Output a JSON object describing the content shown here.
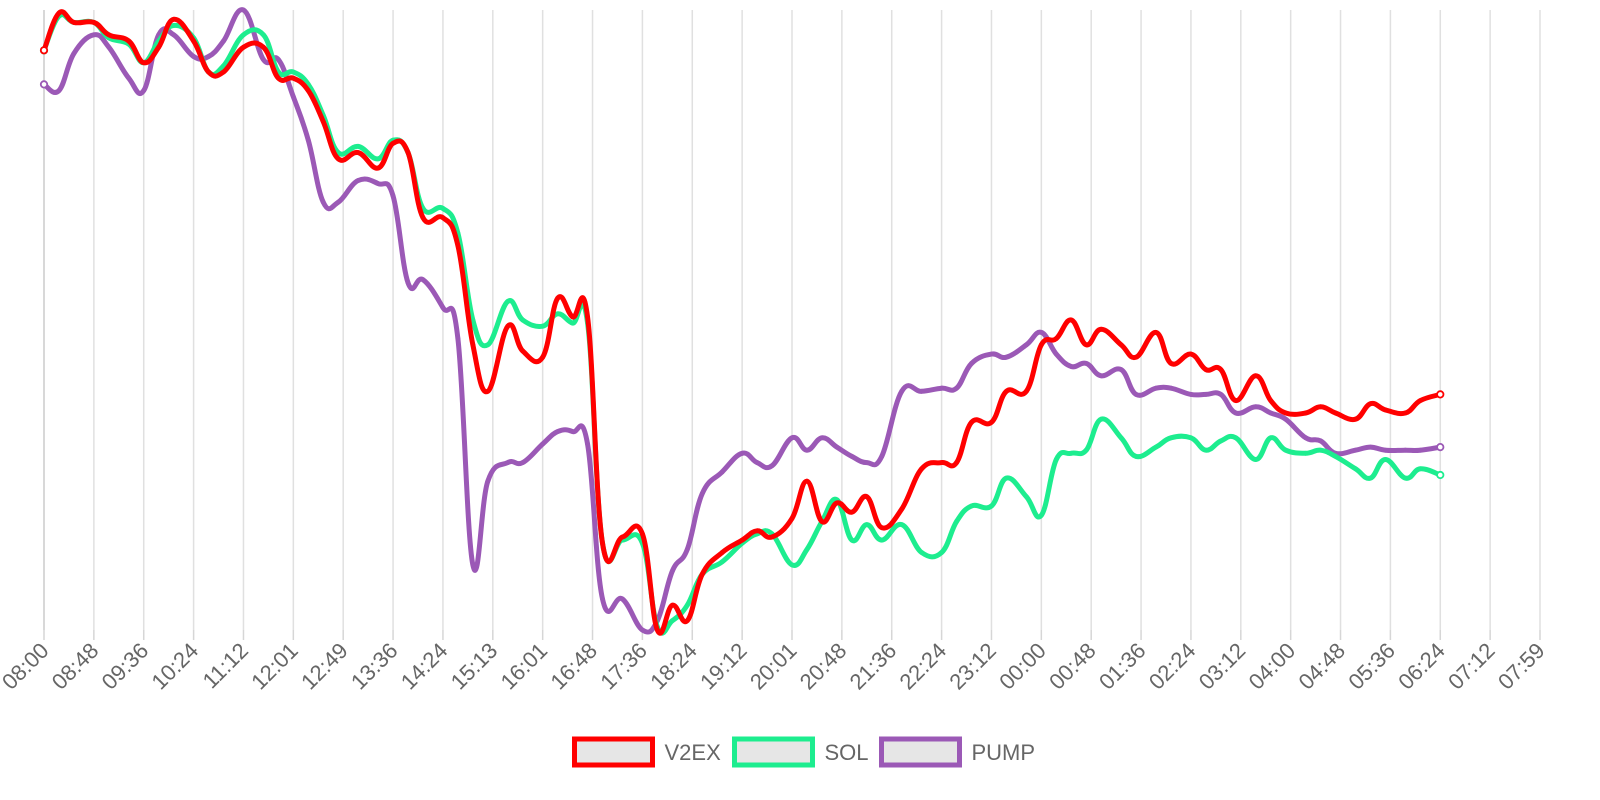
{
  "chart_data": {
    "type": "line",
    "categories": [
      "08:00",
      "08:48",
      "09:36",
      "10:24",
      "11:12",
      "12:01",
      "12:49",
      "13:36",
      "14:24",
      "15:13",
      "16:01",
      "16:48",
      "17:36",
      "18:24",
      "19:12",
      "20:01",
      "20:48",
      "21:36",
      "22:24",
      "23:12",
      "00:00",
      "00:48",
      "01:36",
      "02:24",
      "03:12",
      "04:00",
      "04:48",
      "05:36",
      "06:24",
      "07:12",
      "07:59"
    ],
    "legend": [
      "V2EX",
      "SOL",
      "PUMP"
    ],
    "legend_position": "bottom",
    "grid": true,
    "ylim": [
      0,
      100
    ],
    "series": [
      {
        "name": "V2EX",
        "color": "#ff0000",
        "values": [
          [
            0,
            93.5
          ],
          [
            0.3,
            99.5
          ],
          [
            0.6,
            98
          ],
          [
            1,
            98
          ],
          [
            1.3,
            96
          ],
          [
            1.7,
            95
          ],
          [
            2,
            91.5
          ],
          [
            2.3,
            94
          ],
          [
            2.6,
            98.5
          ],
          [
            3,
            95
          ],
          [
            3.3,
            90
          ],
          [
            3.6,
            90
          ],
          [
            4,
            94
          ],
          [
            4.4,
            94
          ],
          [
            4.7,
            89
          ],
          [
            5,
            89
          ],
          [
            5.3,
            87
          ],
          [
            5.6,
            82
          ],
          [
            5.9,
            76
          ],
          [
            6.3,
            77
          ],
          [
            6.7,
            74.5
          ],
          [
            7,
            78.5
          ],
          [
            7.3,
            77
          ],
          [
            7.6,
            66.5
          ],
          [
            8,
            66.5
          ],
          [
            8.3,
            62
          ],
          [
            8.6,
            46
          ],
          [
            8.9,
            38.5
          ],
          [
            9.3,
            49
          ],
          [
            9.6,
            45
          ],
          [
            10,
            44
          ],
          [
            10.3,
            53.5
          ],
          [
            10.6,
            50.5
          ],
          [
            10.9,
            50.5
          ],
          [
            11.2,
            14
          ],
          [
            11.6,
            15
          ],
          [
            12,
            15.5
          ],
          [
            12.3,
            0
          ],
          [
            12.6,
            4
          ],
          [
            12.9,
            1.5
          ],
          [
            13.2,
            9
          ],
          [
            13.6,
            12.5
          ],
          [
            14,
            14.5
          ],
          [
            14.3,
            16
          ],
          [
            14.6,
            15
          ],
          [
            15,
            18
          ],
          [
            15.3,
            24
          ],
          [
            15.6,
            17.5
          ],
          [
            15.9,
            20.5
          ],
          [
            16.2,
            19
          ],
          [
            16.5,
            21.5
          ],
          [
            16.8,
            16.5
          ],
          [
            17.2,
            19.5
          ],
          [
            17.6,
            26
          ],
          [
            18,
            27
          ],
          [
            18.3,
            27
          ],
          [
            18.6,
            33.5
          ],
          [
            19,
            33.5
          ],
          [
            19.3,
            38.5
          ],
          [
            19.7,
            38.5
          ],
          [
            20,
            46
          ],
          [
            20.3,
            47
          ],
          [
            20.6,
            50
          ],
          [
            20.9,
            46
          ],
          [
            21.2,
            48.5
          ],
          [
            21.6,
            46
          ],
          [
            21.9,
            44
          ],
          [
            22.3,
            48
          ],
          [
            22.6,
            43
          ],
          [
            23,
            44.5
          ],
          [
            23.3,
            42
          ],
          [
            23.6,
            42
          ],
          [
            23.9,
            37
          ],
          [
            24.3,
            41
          ],
          [
            24.6,
            37
          ],
          [
            24.9,
            35
          ],
          [
            25.3,
            35
          ],
          [
            25.6,
            36
          ],
          [
            25.9,
            35
          ],
          [
            26.3,
            34
          ],
          [
            26.6,
            36.5
          ],
          [
            26.9,
            35.5
          ],
          [
            27.3,
            35
          ],
          [
            27.6,
            37
          ],
          [
            28,
            38
          ]
        ]
      },
      {
        "name": "SOL",
        "color": "#1ded8f",
        "values": [
          [
            0,
            93.5
          ],
          [
            0.3,
            99
          ],
          [
            0.6,
            98
          ],
          [
            1,
            98
          ],
          [
            1.3,
            95.5
          ],
          [
            1.7,
            94.5
          ],
          [
            2,
            91.5
          ],
          [
            2.3,
            95
          ],
          [
            2.6,
            97.5
          ],
          [
            3,
            95.5
          ],
          [
            3.3,
            90
          ],
          [
            3.6,
            91
          ],
          [
            4,
            96
          ],
          [
            4.4,
            96
          ],
          [
            4.7,
            90
          ],
          [
            5,
            90
          ],
          [
            5.3,
            88
          ],
          [
            5.6,
            83
          ],
          [
            5.9,
            77
          ],
          [
            6.3,
            78
          ],
          [
            6.7,
            76
          ],
          [
            7,
            79
          ],
          [
            7.3,
            77
          ],
          [
            7.6,
            68
          ],
          [
            8,
            68
          ],
          [
            8.3,
            64
          ],
          [
            8.6,
            50
          ],
          [
            8.9,
            46
          ],
          [
            9.3,
            53
          ],
          [
            9.6,
            50
          ],
          [
            10,
            49
          ],
          [
            10.3,
            51
          ],
          [
            10.6,
            49.5
          ],
          [
            10.9,
            49.5
          ],
          [
            11.2,
            14
          ],
          [
            11.6,
            14.5
          ],
          [
            12,
            14
          ],
          [
            12.3,
            0.5
          ],
          [
            12.6,
            1.5
          ],
          [
            12.9,
            4
          ],
          [
            13.2,
            9
          ],
          [
            13.6,
            11
          ],
          [
            14,
            14
          ],
          [
            14.3,
            15.5
          ],
          [
            14.6,
            15.5
          ],
          [
            15,
            10.5
          ],
          [
            15.3,
            13
          ],
          [
            15.6,
            17.5
          ],
          [
            15.9,
            21
          ],
          [
            16.2,
            14.5
          ],
          [
            16.5,
            17
          ],
          [
            16.8,
            14.5
          ],
          [
            17.2,
            17
          ],
          [
            17.6,
            12.5
          ],
          [
            18,
            12.5
          ],
          [
            18.3,
            17.5
          ],
          [
            18.6,
            20
          ],
          [
            19,
            20
          ],
          [
            19.3,
            24.5
          ],
          [
            19.7,
            21.5
          ],
          [
            20,
            18.5
          ],
          [
            20.3,
            27.5
          ],
          [
            20.6,
            28.5
          ],
          [
            20.9,
            29
          ],
          [
            21.2,
            34
          ],
          [
            21.6,
            31
          ],
          [
            21.9,
            28
          ],
          [
            22.3,
            29.5
          ],
          [
            22.6,
            31
          ],
          [
            23,
            31
          ],
          [
            23.3,
            29
          ],
          [
            23.6,
            30.5
          ],
          [
            23.9,
            31
          ],
          [
            24.3,
            27.5
          ],
          [
            24.6,
            31
          ],
          [
            24.9,
            29
          ],
          [
            25.3,
            28.5
          ],
          [
            25.6,
            29
          ],
          [
            25.9,
            28
          ],
          [
            26.3,
            26
          ],
          [
            26.6,
            24.5
          ],
          [
            26.9,
            27.5
          ],
          [
            27.3,
            24.5
          ],
          [
            27.6,
            26
          ],
          [
            28,
            25
          ]
        ]
      },
      {
        "name": "PUMP",
        "color": "#9b59b6",
        "values": [
          [
            0,
            88
          ],
          [
            0.3,
            87
          ],
          [
            0.6,
            93
          ],
          [
            1,
            96
          ],
          [
            1.3,
            94
          ],
          [
            1.7,
            89
          ],
          [
            2,
            87
          ],
          [
            2.3,
            96
          ],
          [
            2.6,
            96
          ],
          [
            3,
            92.5
          ],
          [
            3.3,
            92.5
          ],
          [
            3.6,
            95
          ],
          [
            4,
            100
          ],
          [
            4.4,
            92
          ],
          [
            4.7,
            92
          ],
          [
            5,
            86
          ],
          [
            5.3,
            79
          ],
          [
            5.6,
            69
          ],
          [
            5.9,
            69
          ],
          [
            6.3,
            72.5
          ],
          [
            6.7,
            72
          ],
          [
            7,
            70
          ],
          [
            7.3,
            56
          ],
          [
            7.6,
            56.5
          ],
          [
            8,
            52
          ],
          [
            8.3,
            47
          ],
          [
            8.6,
            10.5
          ],
          [
            8.9,
            24
          ],
          [
            9.3,
            27
          ],
          [
            9.6,
            27
          ],
          [
            10,
            30
          ],
          [
            10.3,
            32
          ],
          [
            10.6,
            32
          ],
          [
            10.9,
            30
          ],
          [
            11.2,
            5
          ],
          [
            11.6,
            5
          ],
          [
            12,
            0
          ],
          [
            12.3,
            1.5
          ],
          [
            12.6,
            9.5
          ],
          [
            12.9,
            13
          ],
          [
            13.2,
            22
          ],
          [
            13.6,
            25.5
          ],
          [
            14,
            28.5
          ],
          [
            14.3,
            27
          ],
          [
            14.6,
            26.5
          ],
          [
            15,
            31
          ],
          [
            15.3,
            29
          ],
          [
            15.6,
            31
          ],
          [
            15.9,
            29.5
          ],
          [
            16.2,
            28
          ],
          [
            16.5,
            27
          ],
          [
            16.8,
            28
          ],
          [
            17.2,
            38.5
          ],
          [
            17.6,
            38.5
          ],
          [
            18,
            39
          ],
          [
            18.3,
            39
          ],
          [
            18.6,
            43
          ],
          [
            19,
            44.5
          ],
          [
            19.3,
            44
          ],
          [
            19.7,
            46
          ],
          [
            20,
            48
          ],
          [
            20.3,
            44.5
          ],
          [
            20.6,
            42.5
          ],
          [
            20.9,
            43
          ],
          [
            21.2,
            41
          ],
          [
            21.6,
            42
          ],
          [
            21.9,
            38
          ],
          [
            22.3,
            39
          ],
          [
            22.6,
            39
          ],
          [
            23,
            38
          ],
          [
            23.3,
            38
          ],
          [
            23.6,
            38
          ],
          [
            23.9,
            35
          ],
          [
            24.3,
            36
          ],
          [
            24.6,
            35
          ],
          [
            24.9,
            34
          ],
          [
            25.3,
            31
          ],
          [
            25.6,
            30.5
          ],
          [
            25.9,
            28.5
          ],
          [
            26.3,
            29
          ],
          [
            26.6,
            29.5
          ],
          [
            26.9,
            29
          ],
          [
            27.3,
            29
          ],
          [
            27.6,
            29
          ],
          [
            28,
            29.5
          ]
        ]
      }
    ]
  }
}
